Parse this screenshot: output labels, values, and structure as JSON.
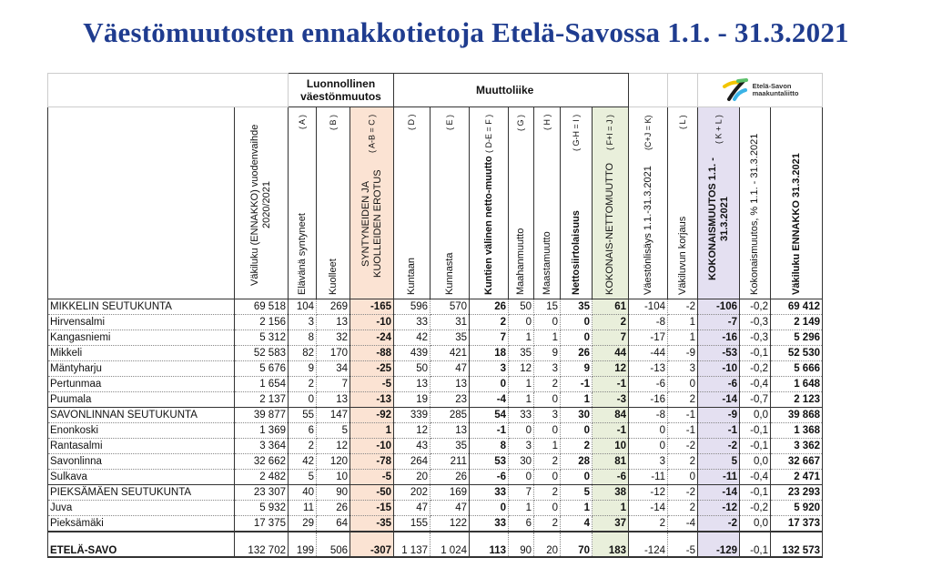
{
  "title": "Väestömuutosten ennakkotietoja Etelä-Savossa 1.1. - 31.3.2021",
  "groups": {
    "natural": "Luonnollinen väestönmuutos",
    "migration": "Muuttoliike",
    "logo_text_1": "Etelä-Savon",
    "logo_text_2": "maakuntaliitto"
  },
  "colors": {
    "title": "#1f3c8f",
    "col_C": "#fbe3d3",
    "col_J": "#e9efdb",
    "col_KL": "#e4e0f1"
  },
  "columns": [
    {
      "label": "Väkiluku (ENNAKKO) vuodenvaihde 2020/2021",
      "code": "",
      "bold": false
    },
    {
      "label": "Elävänä syntyneet",
      "code": "( A )",
      "bold": false
    },
    {
      "label": "Kuolleet",
      "code": "( B )",
      "bold": false
    },
    {
      "label": "SYNTYNEIDEN JA KUOLLEIDEN EROTUS",
      "code": "( A-B = C )",
      "bold": false
    },
    {
      "label": "Kuntaan",
      "code": "( D )",
      "bold": false
    },
    {
      "label": "Kunnasta",
      "code": "( E )",
      "bold": false
    },
    {
      "label": "Kuntien välinen netto-muutto",
      "code": "( D-E = F )",
      "bold": true
    },
    {
      "label": "Maahanmuutto",
      "code": "( G )",
      "bold": false
    },
    {
      "label": "Maastamuutto",
      "code": "( H )",
      "bold": false
    },
    {
      "label": "Nettosiirtolaisuus",
      "code": "( G-H = I )",
      "bold": true
    },
    {
      "label": "KOKONAIS-NETTOMUUTTO",
      "code": "( F+I = J )",
      "bold": false
    },
    {
      "label": "Väestönlisäys 1.1.-31.3.2021",
      "code": "(C+J = K)",
      "bold": false
    },
    {
      "label": "Väkiluvun korjaus",
      "code": "( L )",
      "bold": false
    },
    {
      "label": "KOKONAISMUUTOS 1.1. - 31.3.2021",
      "code": "( K + L )",
      "bold": true
    },
    {
      "label": "Kokonaismuutos, % 1.1. - 31.3.2021",
      "code": "",
      "bold": false
    },
    {
      "label": "Väkiluku ENNAKKO 31.3.2021",
      "code": "",
      "bold": true
    }
  ],
  "rows": [
    {
      "name": "MIKKELIN SEUTUKUNTA",
      "type": "region",
      "values": [
        "69 518",
        "104",
        "269",
        "-165",
        "596",
        "570",
        "26",
        "50",
        "15",
        "35",
        "61",
        "-104",
        "-2",
        "-106",
        "-0,2",
        "69 412"
      ]
    },
    {
      "name": "Hirvensalmi",
      "type": "municipality",
      "values": [
        "2 156",
        "3",
        "13",
        "-10",
        "33",
        "31",
        "2",
        "0",
        "0",
        "0",
        "2",
        "-8",
        "1",
        "-7",
        "-0,3",
        "2 149"
      ]
    },
    {
      "name": "Kangasniemi",
      "type": "municipality",
      "values": [
        "5 312",
        "8",
        "32",
        "-24",
        "42",
        "35",
        "7",
        "1",
        "1",
        "0",
        "7",
        "-17",
        "1",
        "-16",
        "-0,3",
        "5 296"
      ]
    },
    {
      "name": "Mikkeli",
      "type": "municipality",
      "values": [
        "52 583",
        "82",
        "170",
        "-88",
        "439",
        "421",
        "18",
        "35",
        "9",
        "26",
        "44",
        "-44",
        "-9",
        "-53",
        "-0,1",
        "52 530"
      ]
    },
    {
      "name": "Mäntyharju",
      "type": "municipality",
      "values": [
        "5 676",
        "9",
        "34",
        "-25",
        "50",
        "47",
        "3",
        "12",
        "3",
        "9",
        "12",
        "-13",
        "3",
        "-10",
        "-0,2",
        "5 666"
      ]
    },
    {
      "name": "Pertunmaa",
      "type": "municipality",
      "values": [
        "1 654",
        "2",
        "7",
        "-5",
        "13",
        "13",
        "0",
        "1",
        "2",
        "-1",
        "-1",
        "-6",
        "0",
        "-6",
        "-0,4",
        "1 648"
      ]
    },
    {
      "name": "Puumala",
      "type": "municipality",
      "values": [
        "2 137",
        "0",
        "13",
        "-13",
        "19",
        "23",
        "-4",
        "1",
        "0",
        "1",
        "-3",
        "-16",
        "2",
        "-14",
        "-0,7",
        "2 123"
      ]
    },
    {
      "name": "SAVONLINNAN SEUTUKUNTA",
      "type": "region",
      "values": [
        "39 877",
        "55",
        "147",
        "-92",
        "339",
        "285",
        "54",
        "33",
        "3",
        "30",
        "84",
        "-8",
        "-1",
        "-9",
        "0,0",
        "39 868"
      ]
    },
    {
      "name": "Enonkoski",
      "type": "municipality",
      "values": [
        "1 369",
        "6",
        "5",
        "1",
        "12",
        "13",
        "-1",
        "0",
        "0",
        "0",
        "-1",
        "0",
        "-1",
        "-1",
        "-0,1",
        "1 368"
      ]
    },
    {
      "name": "Rantasalmi",
      "type": "municipality",
      "values": [
        "3 364",
        "2",
        "12",
        "-10",
        "43",
        "35",
        "8",
        "3",
        "1",
        "2",
        "10",
        "0",
        "-2",
        "-2",
        "-0,1",
        "3 362"
      ]
    },
    {
      "name": "Savonlinna",
      "type": "municipality",
      "values": [
        "32 662",
        "42",
        "120",
        "-78",
        "264",
        "211",
        "53",
        "30",
        "2",
        "28",
        "81",
        "3",
        "2",
        "5",
        "0,0",
        "32 667"
      ]
    },
    {
      "name": "Sulkava",
      "type": "municipality",
      "values": [
        "2 482",
        "5",
        "10",
        "-5",
        "20",
        "26",
        "-6",
        "0",
        "0",
        "0",
        "-6",
        "-11",
        "0",
        "-11",
        "-0,4",
        "2 471"
      ]
    },
    {
      "name": "PIEKSÄMÄEN SEUTUKUNTA",
      "type": "region",
      "values": [
        "23 307",
        "40",
        "90",
        "-50",
        "202",
        "169",
        "33",
        "7",
        "2",
        "5",
        "38",
        "-12",
        "-2",
        "-14",
        "-0,1",
        "23 293"
      ]
    },
    {
      "name": "Juva",
      "type": "municipality",
      "values": [
        "5 932",
        "11",
        "26",
        "-15",
        "47",
        "47",
        "0",
        "1",
        "0",
        "1",
        "1",
        "-14",
        "2",
        "-12",
        "-0,2",
        "5 920"
      ]
    },
    {
      "name": "Pieksämäki",
      "type": "municipality",
      "values": [
        "17 375",
        "29",
        "64",
        "-35",
        "155",
        "122",
        "33",
        "6",
        "2",
        "4",
        "37",
        "2",
        "-4",
        "-2",
        "0,0",
        "17 373"
      ]
    },
    {
      "name": "ETELÄ-SAVO",
      "type": "total",
      "values": [
        "132 702",
        "199",
        "506",
        "-307",
        "1 137",
        "1 024",
        "113",
        "90",
        "20",
        "70",
        "183",
        "-124",
        "-5",
        "-129",
        "-0,1",
        "132 573"
      ]
    }
  ]
}
